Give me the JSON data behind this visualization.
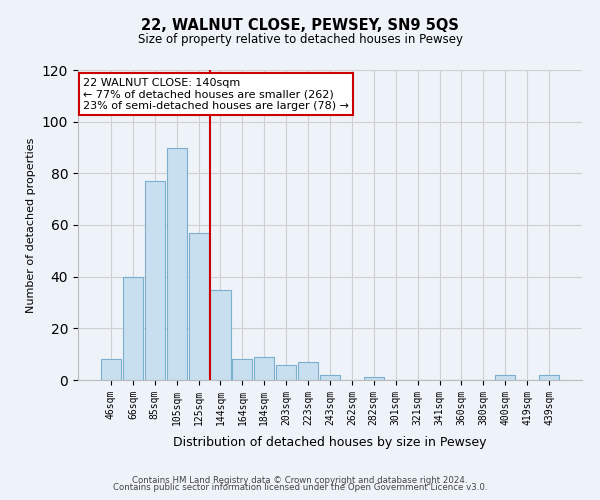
{
  "title": "22, WALNUT CLOSE, PEWSEY, SN9 5QS",
  "subtitle": "Size of property relative to detached houses in Pewsey",
  "xlabel": "Distribution of detached houses by size in Pewsey",
  "ylabel": "Number of detached properties",
  "bar_labels": [
    "46sqm",
    "66sqm",
    "85sqm",
    "105sqm",
    "125sqm",
    "144sqm",
    "164sqm",
    "184sqm",
    "203sqm",
    "223sqm",
    "243sqm",
    "262sqm",
    "282sqm",
    "301sqm",
    "321sqm",
    "341sqm",
    "360sqm",
    "380sqm",
    "400sqm",
    "419sqm",
    "439sqm"
  ],
  "bar_heights": [
    8,
    40,
    77,
    90,
    57,
    35,
    8,
    9,
    6,
    7,
    2,
    0,
    1,
    0,
    0,
    0,
    0,
    0,
    2,
    0,
    2
  ],
  "bar_color": "#c8dff0",
  "bar_edge_color": "#7aaecc",
  "vline_color": "#cc0000",
  "annotation_text": "22 WALNUT CLOSE: 140sqm\n← 77% of detached houses are smaller (262)\n23% of semi-detached houses are larger (78) →",
  "annotation_box_edgecolor": "#cc0000",
  "ylim": [
    0,
    120
  ],
  "yticks": [
    0,
    20,
    40,
    60,
    80,
    100,
    120
  ],
  "grid_color": "#d0d0d0",
  "footer_line1": "Contains HM Land Registry data © Crown copyright and database right 2024.",
  "footer_line2": "Contains public sector information licensed under the Open Government Licence v3.0.",
  "bg_color": "#eef2f9",
  "plot_bg_color": "#eef2f9"
}
